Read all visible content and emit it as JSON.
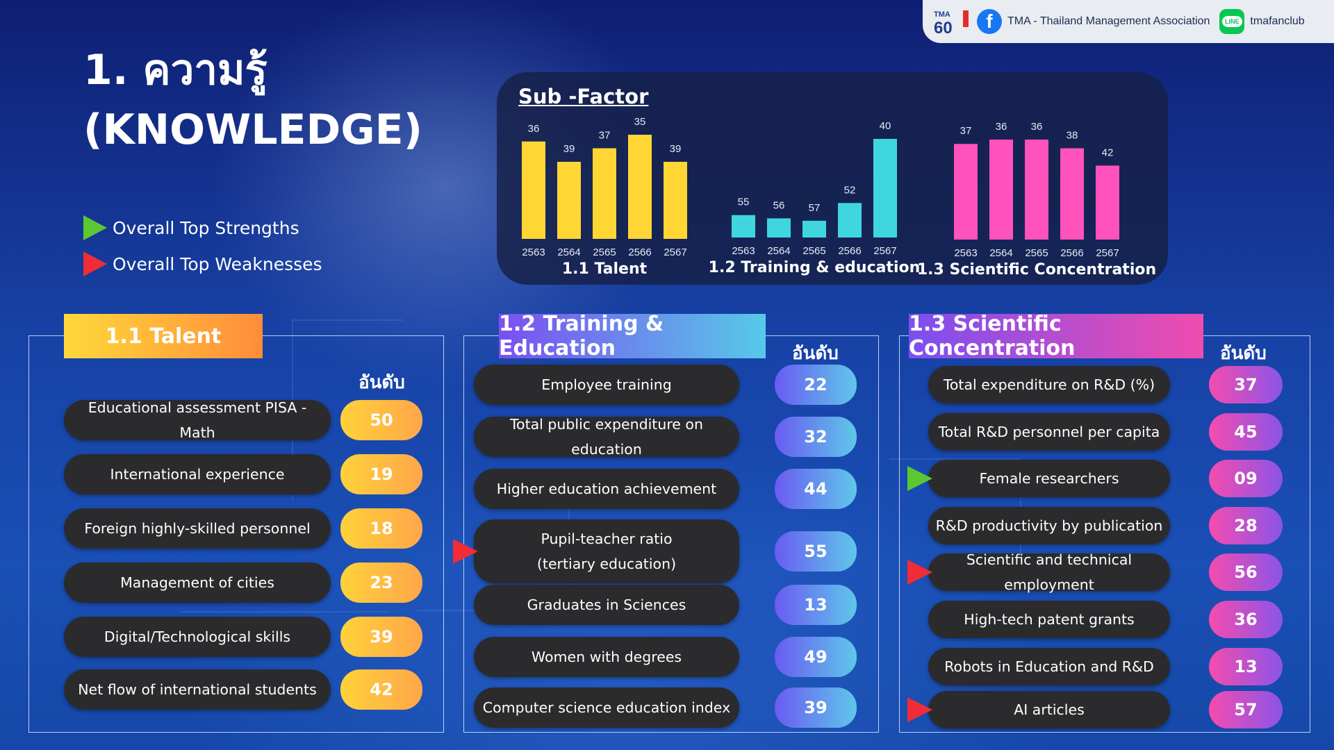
{
  "brand": {
    "logo_text": "TMA",
    "logo_number": "60",
    "facebook_label": "TMA - Thailand Management Association",
    "line_label": "tmafanclub",
    "line_icon_text": "LINE"
  },
  "title_line1": "1. ความรู้",
  "title_line2": "(KNOWLEDGE)",
  "legend": {
    "strengths": "Overall Top Strengths",
    "weaknesses": "Overall Top Weaknesses",
    "strength_color": "#5cc633",
    "weakness_color": "#f02c36"
  },
  "subfactor_title": "Sub -Factor",
  "chart_data": [
    {
      "type": "bar",
      "title": "1.1 Talent",
      "categories": [
        "2563",
        "2564",
        "2565",
        "2566",
        "2567"
      ],
      "values": [
        36,
        39,
        37,
        35,
        39
      ],
      "color": "#ffd633"
    },
    {
      "type": "bar",
      "title": "1.2 Training & education",
      "categories": [
        "2563",
        "2564",
        "2565",
        "2566",
        "2567"
      ],
      "values": [
        55,
        56,
        57,
        52,
        40
      ],
      "color": "#3fd6df"
    },
    {
      "type": "bar",
      "title": "1.3 Scientific Concentration",
      "categories": [
        "2563",
        "2564",
        "2565",
        "2566",
        "2567"
      ],
      "values": [
        37,
        36,
        36,
        38,
        42
      ],
      "color": "#ff52bd"
    }
  ],
  "rank_header": "อันดับ",
  "sections": [
    {
      "title": "1.1 Talent",
      "items": [
        {
          "label": "Educational assessment PISA - Math",
          "rank": "50"
        },
        {
          "label": "International experience",
          "rank": "19"
        },
        {
          "label": "Foreign highly-skilled personnel",
          "rank": "18"
        },
        {
          "label": "Management of cities",
          "rank": "23"
        },
        {
          "label": "Digital/Technological skills",
          "rank": "39"
        },
        {
          "label": "Net flow of international students",
          "rank": "42"
        }
      ]
    },
    {
      "title": "1.2 Training & Education",
      "items": [
        {
          "label": "Employee training",
          "rank": "22"
        },
        {
          "label": "Total public expenditure on education",
          "rank": "32"
        },
        {
          "label": "Higher education achievement",
          "rank": "44"
        },
        {
          "label": "Pupil-teacher ratio",
          "label2": "(tertiary education)",
          "rank": "55",
          "marker": "weakness"
        },
        {
          "label": "Graduates in Sciences",
          "rank": "13"
        },
        {
          "label": "Women with degrees",
          "rank": "49"
        },
        {
          "label": "Computer science education index",
          "rank": "39"
        }
      ]
    },
    {
      "title": "1.3 Scientific Concentration",
      "items": [
        {
          "label": "Total expenditure on R&D (%)",
          "rank": "37"
        },
        {
          "label": "Total R&D personnel per capita",
          "rank": "45"
        },
        {
          "label": "Female researchers",
          "rank": "09",
          "marker": "strength"
        },
        {
          "label": "R&D productivity by publication",
          "rank": "28"
        },
        {
          "label": "Scientific and technical employment",
          "rank": "56",
          "marker": "weakness"
        },
        {
          "label": "High-tech patent grants",
          "rank": "36"
        },
        {
          "label": "Robots in Education and R&D",
          "rank": "13"
        },
        {
          "label": "AI articles",
          "rank": "57",
          "marker": "weakness"
        }
      ]
    }
  ]
}
